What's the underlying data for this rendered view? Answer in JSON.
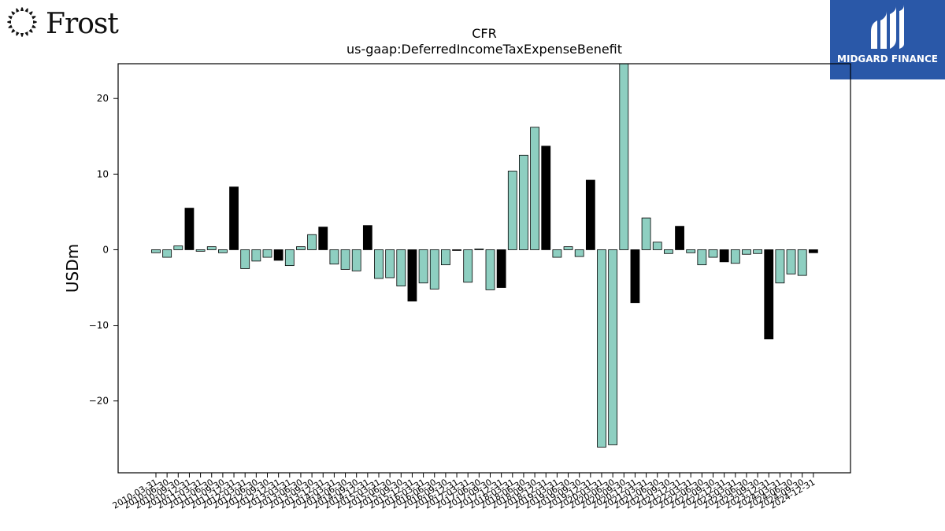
{
  "brand": {
    "left_logo_text": "Frost",
    "right_logo_text": "MIDGARD FINANCE"
  },
  "colors": {
    "default_bar": "#8ecfc1",
    "highlight_bar": "#000000",
    "midgard_blue": "#2a58a8"
  },
  "chart_data": {
    "type": "bar",
    "title": "CFR",
    "subtitle": "us-gaap:DeferredIncomeTaxExpenseBenefit",
    "xlabel": "",
    "ylabel": "USDm",
    "ylim": [
      -29.5,
      24.6
    ],
    "yticks": [
      -20,
      -10,
      0,
      10,
      20
    ],
    "grid": false,
    "categories": [
      "2010-03-31",
      "2010-06-30",
      "2010-09-30",
      "2010-12-31",
      "2011-03-31",
      "2011-06-30",
      "2011-09-30",
      "2011-12-31",
      "2012-03-31",
      "2012-06-30",
      "2012-09-30",
      "2012-12-31",
      "2013-03-31",
      "2013-06-30",
      "2013-09-30",
      "2013-12-31",
      "2014-03-31",
      "2014-06-30",
      "2014-09-30",
      "2014-12-31",
      "2015-03-31",
      "2015-06-30",
      "2015-09-30",
      "2015-12-31",
      "2016-03-31",
      "2016-06-30",
      "2016-09-30",
      "2016-12-31",
      "2017-03-31",
      "2017-06-30",
      "2017-09-30",
      "2017-12-31",
      "2018-03-31",
      "2018-06-30",
      "2018-09-30",
      "2018-12-31",
      "2019-03-31",
      "2019-06-30",
      "2019-09-30",
      "2019-12-31",
      "2020-03-31",
      "2020-06-30",
      "2020-09-30",
      "2020-12-31",
      "2021-03-31",
      "2021-06-30",
      "2021-09-30",
      "2021-12-31",
      "2022-03-31",
      "2022-06-30",
      "2022-09-30",
      "2022-12-31",
      "2023-03-31",
      "2023-06-30",
      "2023-09-30",
      "2023-12-31",
      "2024-03-31",
      "2024-06-30",
      "2024-09-30",
      "2024-12-31"
    ],
    "values": [
      -0.4,
      -1.0,
      0.5,
      5.5,
      -0.2,
      0.4,
      -0.4,
      8.3,
      -2.5,
      -1.5,
      -1.0,
      -1.4,
      -2.1,
      0.4,
      2.0,
      3.0,
      -1.9,
      -2.6,
      -2.8,
      3.2,
      -3.8,
      -3.7,
      -4.8,
      -6.8,
      -4.4,
      -5.2,
      -2.0,
      -0.1,
      -4.3,
      0.1,
      -5.3,
      -5.0,
      10.4,
      12.5,
      16.2,
      13.7,
      -1.0,
      0.4,
      -0.9,
      9.2,
      -26.1,
      -25.8,
      24.6,
      -7.0,
      4.2,
      1.0,
      -0.5,
      3.1,
      -0.4,
      -2.0,
      -1.0,
      -1.6,
      -1.8,
      -0.6,
      -0.5,
      -11.8,
      -4.4,
      -3.2,
      -3.4,
      -0.4
    ],
    "highlight_every": 4
  }
}
